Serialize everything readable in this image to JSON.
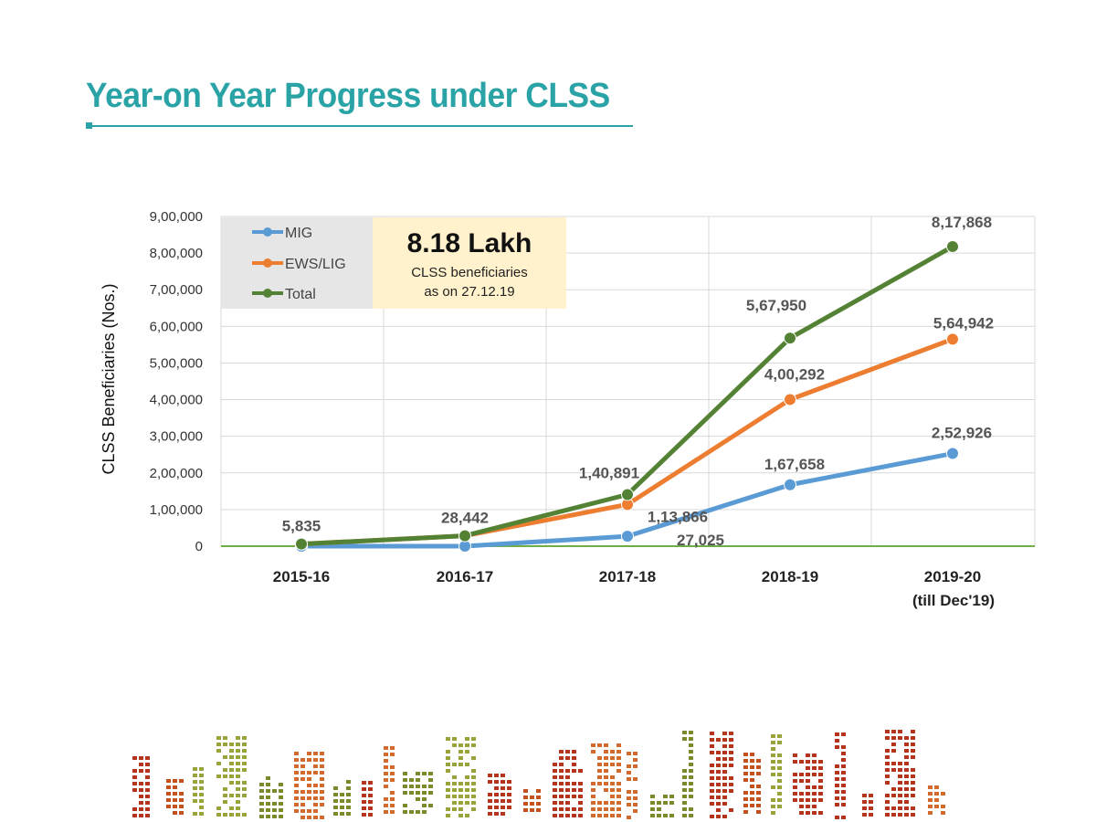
{
  "title": "Year-on Year Progress under CLSS",
  "colors": {
    "title": "#2aa3a6",
    "mig": "#5b9bd5",
    "ews": "#ed7d31",
    "total": "#548235",
    "axis": "#70ad47",
    "highlight_bg": "#fff2cc",
    "legend_bg": "#e7e6e6"
  },
  "highlight": {
    "value": "8.18 Lakh",
    "line1": "CLSS beneficiaries",
    "line2": "as on 27.12.19"
  },
  "chart_data": {
    "type": "line",
    "title": "Year-on Year Progress under CLSS",
    "xlabel": "",
    "ylabel": "CLSS Beneficiaries (Nos.)",
    "ylim": [
      0,
      900000
    ],
    "ytick_step": 100000,
    "yticks": [
      "0",
      "1,00,000",
      "2,00,000",
      "3,00,000",
      "4,00,000",
      "5,00,000",
      "6,00,000",
      "7,00,000",
      "8,00,000",
      "9,00,000"
    ],
    "categories": [
      "2015-16",
      "2016-17",
      "2017-18",
      "2018-19",
      "2019-20"
    ],
    "category_sublabels": [
      "",
      "",
      "",
      "",
      "(till Dec'19)"
    ],
    "legend": [
      "MIG",
      "EWS/LIG",
      "Total"
    ],
    "legend_position": "top-left",
    "series": [
      {
        "name": "MIG",
        "key": "mig",
        "values": [
          0,
          0,
          27025,
          167658,
          252926
        ],
        "labels": [
          "",
          "",
          "27,025",
          "1,67,658",
          "2,52,926"
        ]
      },
      {
        "name": "EWS/LIG",
        "key": "ews",
        "values": [
          5835,
          28442,
          113866,
          400292,
          564942
        ],
        "labels": [
          "",
          "",
          "1,13,866",
          "4,00,292",
          "5,64,942"
        ]
      },
      {
        "name": "Total",
        "key": "total",
        "values": [
          5835,
          28442,
          140891,
          567950,
          817868
        ],
        "labels": [
          "5,835",
          "28,442",
          "1,40,891",
          "5,67,950",
          "8,17,868"
        ]
      }
    ]
  }
}
